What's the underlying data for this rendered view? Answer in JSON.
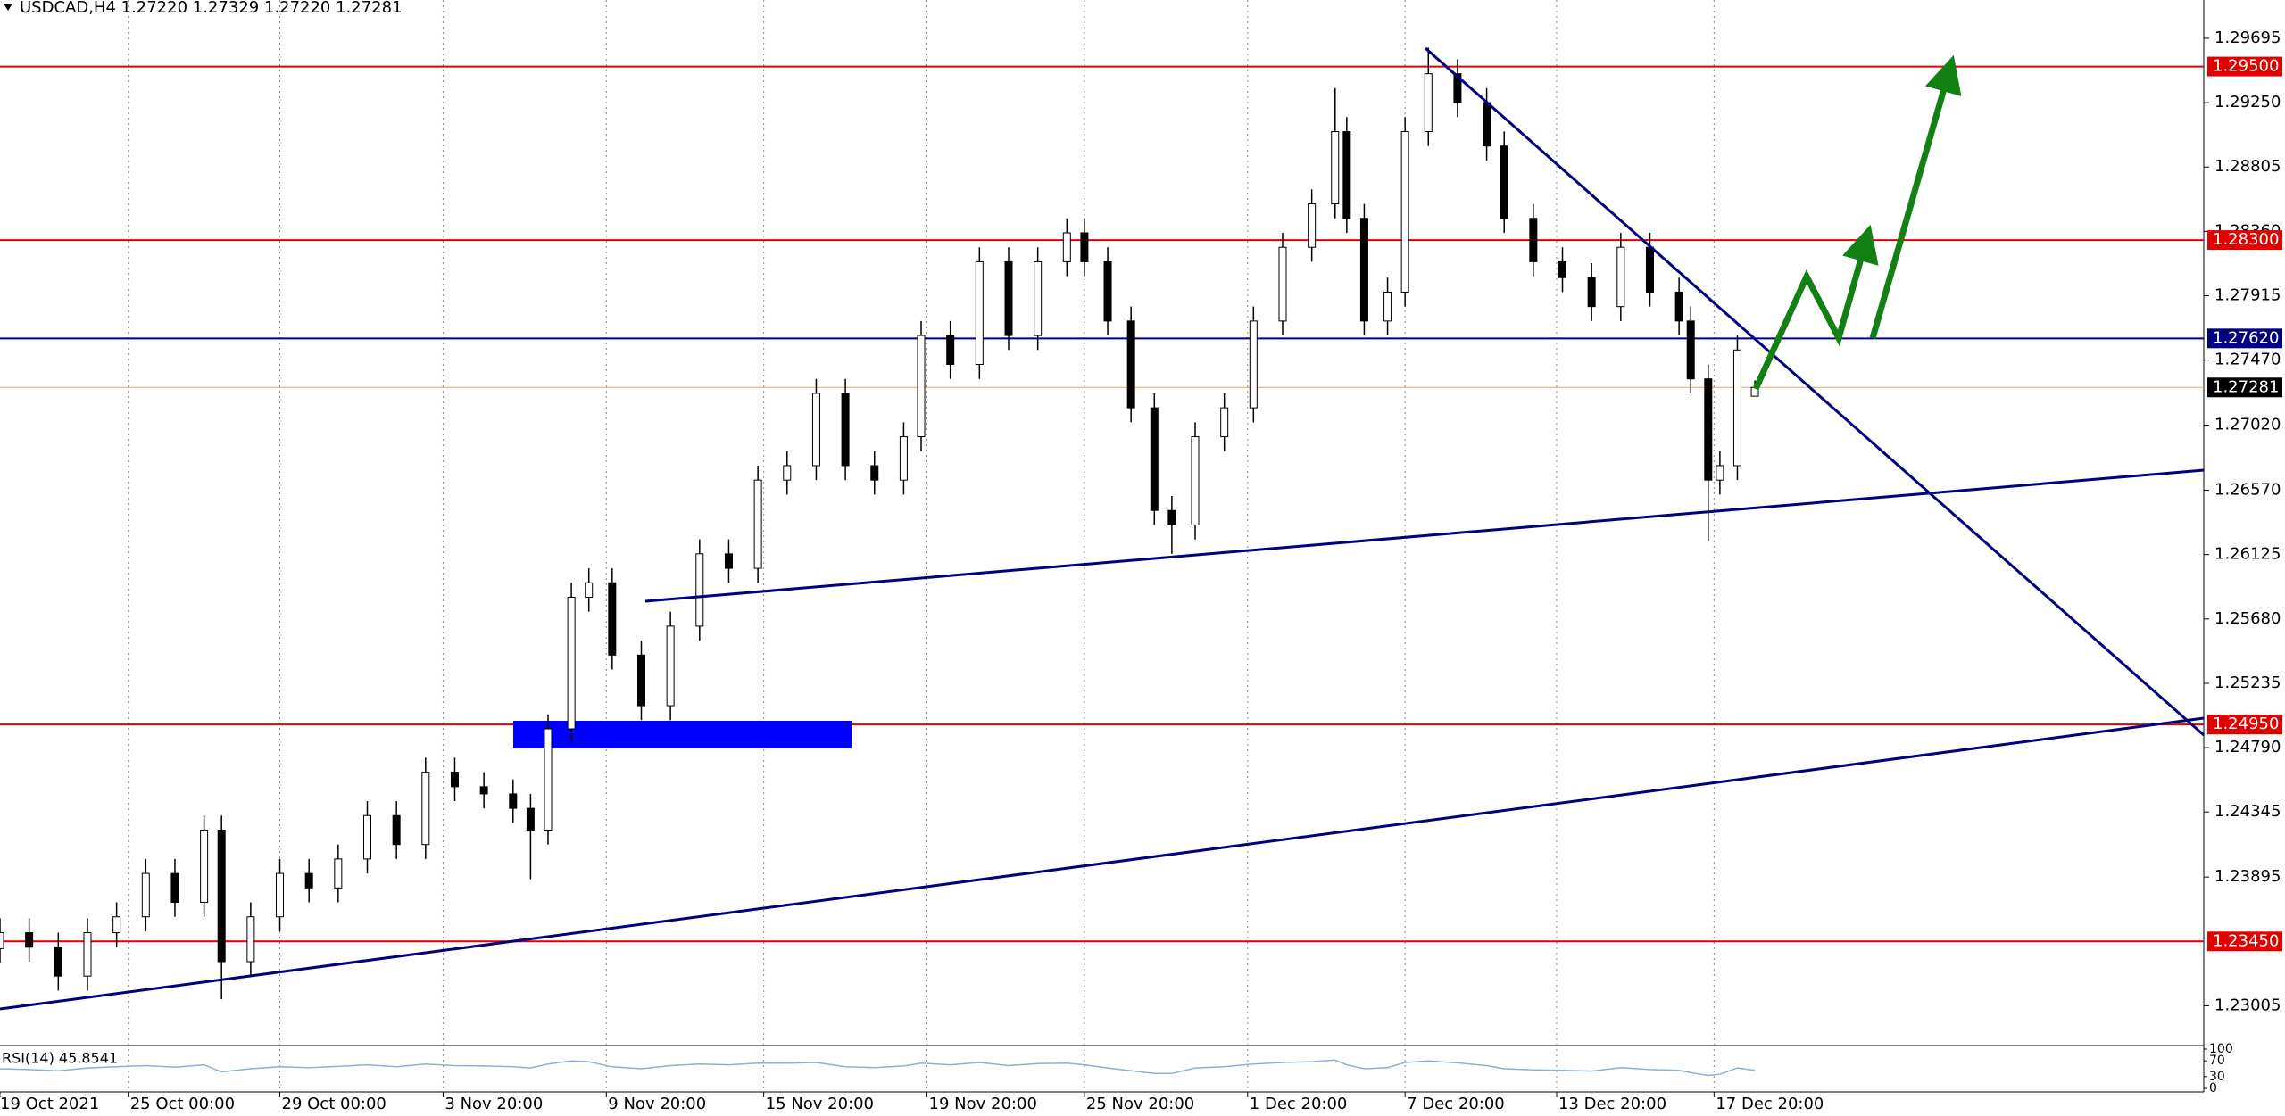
{
  "chart_data": {
    "type": "candlestick",
    "header": "USDCAD,H4  1.27220 1.27329 1.27220 1.27281",
    "x": [
      0,
      5,
      10,
      15,
      20,
      25,
      30,
      35,
      38,
      43,
      48,
      53,
      58,
      63,
      68,
      73,
      78,
      83,
      88,
      91,
      94,
      98,
      101,
      105,
      110,
      115,
      120,
      125,
      130,
      135,
      140,
      145,
      150,
      155,
      158,
      163,
      168,
      173,
      178,
      183,
      186,
      190,
      194,
      198,
      201,
      205,
      210,
      215,
      220,
      225,
      229,
      231,
      234,
      238,
      241,
      245,
      250,
      255,
      258,
      263,
      268,
      273,
      278,
      283,
      288,
      290,
      293,
      295,
      298,
      301
    ],
    "open": [
      1.234,
      1.2351,
      1.2341,
      1.2321,
      1.2351,
      1.2362,
      1.2392,
      1.2372,
      1.2422,
      1.2331,
      1.2362,
      1.2392,
      1.2382,
      1.2402,
      1.2432,
      1.2412,
      1.2462,
      1.2452,
      1.2447,
      1.2437,
      1.2422,
      1.2492,
      1.2583,
      1.2593,
      1.2543,
      1.2508,
      1.2563,
      1.2613,
      1.2603,
      1.2664,
      1.2674,
      1.2724,
      1.2674,
      1.2664,
      1.2694,
      1.2764,
      1.2744,
      1.2815,
      1.2764,
      1.2815,
      1.2835,
      1.2815,
      1.2774,
      1.2714,
      1.2643,
      1.2633,
      1.2694,
      1.2714,
      1.2774,
      1.2825,
      1.2855,
      1.2905,
      1.2845,
      1.2774,
      1.2794,
      1.2905,
      1.2945,
      1.2925,
      1.2895,
      1.2845,
      1.2815,
      1.2804,
      1.2784,
      1.2825,
      1.2794,
      1.2774,
      1.2734,
      1.2664,
      1.2674,
      1.2722
    ],
    "high": [
      1.2361,
      1.2361,
      1.2351,
      1.2361,
      1.2372,
      1.2402,
      1.2402,
      1.2432,
      1.2432,
      1.2372,
      1.2402,
      1.2402,
      1.2412,
      1.2442,
      1.2442,
      1.2472,
      1.2472,
      1.2462,
      1.2457,
      1.2447,
      1.2502,
      1.2593,
      1.2603,
      1.2603,
      1.2553,
      1.2573,
      1.2623,
      1.2623,
      1.2674,
      1.2684,
      1.2734,
      1.2734,
      1.2684,
      1.2704,
      1.2774,
      1.2774,
      1.2825,
      1.2825,
      1.2825,
      1.2845,
      1.2845,
      1.2825,
      1.2784,
      1.2724,
      1.2653,
      1.2704,
      1.2724,
      1.2784,
      1.2835,
      1.2865,
      1.2935,
      1.2915,
      1.2855,
      1.2804,
      1.2915,
      1.2963,
      1.2955,
      1.2935,
      1.2905,
      1.2855,
      1.2825,
      1.2814,
      1.2835,
      1.2835,
      1.2804,
      1.2784,
      1.2744,
      1.2684,
      1.2764,
      1.27329
    ],
    "low": [
      1.233,
      1.2331,
      1.2311,
      1.2311,
      1.2341,
      1.2352,
      1.2362,
      1.2362,
      1.2305,
      1.2321,
      1.2352,
      1.2372,
      1.2372,
      1.2392,
      1.2402,
      1.2402,
      1.2442,
      1.2437,
      1.2427,
      1.2388,
      1.2412,
      1.2482,
      1.2573,
      1.2533,
      1.2498,
      1.2498,
      1.2553,
      1.2593,
      1.2593,
      1.2654,
      1.2664,
      1.2664,
      1.2654,
      1.2654,
      1.2684,
      1.2734,
      1.2734,
      1.2754,
      1.2754,
      1.2805,
      1.2805,
      1.2764,
      1.2704,
      1.2633,
      1.2613,
      1.2623,
      1.2684,
      1.2704,
      1.2764,
      1.2815,
      1.2845,
      1.2835,
      1.2764,
      1.2764,
      1.2784,
      1.2895,
      1.2915,
      1.2885,
      1.2835,
      1.2805,
      1.2794,
      1.2774,
      1.2774,
      1.2784,
      1.2764,
      1.2724,
      1.2622,
      1.2654,
      1.2664,
      1.2722
    ],
    "close": [
      1.2351,
      1.2341,
      1.2321,
      1.2351,
      1.2362,
      1.2392,
      1.2372,
      1.2422,
      1.2331,
      1.2362,
      1.2392,
      1.2382,
      1.2402,
      1.2432,
      1.2412,
      1.2462,
      1.2452,
      1.2447,
      1.2437,
      1.2422,
      1.2492,
      1.2583,
      1.2593,
      1.2543,
      1.2508,
      1.2563,
      1.2613,
      1.2603,
      1.2664,
      1.2674,
      1.2724,
      1.2674,
      1.2664,
      1.2694,
      1.2764,
      1.2744,
      1.2815,
      1.2764,
      1.2815,
      1.2835,
      1.2815,
      1.2774,
      1.2714,
      1.2643,
      1.2633,
      1.2694,
      1.2714,
      1.2774,
      1.2825,
      1.2855,
      1.2905,
      1.2845,
      1.2774,
      1.2794,
      1.2905,
      1.2945,
      1.2925,
      1.2895,
      1.2845,
      1.2815,
      1.2804,
      1.2784,
      1.2825,
      1.2794,
      1.2774,
      1.2734,
      1.2664,
      1.2674,
      1.2754,
      1.27281
    ],
    "xlim": [
      0,
      378
    ],
    "xticks": [
      {
        "value": 0,
        "label": "19 Oct 2021"
      },
      {
        "value": 22,
        "label": "25 Oct 00:00"
      },
      {
        "value": 48,
        "label": "29 Oct 00:00"
      },
      {
        "value": 76,
        "label": "3 Nov 20:00"
      },
      {
        "value": 104,
        "label": "9 Nov 20:00"
      },
      {
        "value": 131,
        "label": "15 Nov 20:00"
      },
      {
        "value": 159,
        "label": "19 Nov 20:00"
      },
      {
        "value": 186,
        "label": "25 Nov 20:00"
      },
      {
        "value": 214,
        "label": "1 Dec 20:00"
      },
      {
        "value": 241,
        "label": "7 Dec 20:00"
      },
      {
        "value": 267,
        "label": "13 Dec 20:00"
      },
      {
        "value": 294,
        "label": "17 Dec 20:00"
      }
    ],
    "ylim": [
      1.2273,
      1.2996
    ],
    "yticks": [
      1.29695,
      {
        "value": 1.2925,
        "label": "1.29250"
      },
      1.28805,
      {
        "value": 1.2836,
        "label": "1.28360"
      },
      1.27915,
      {
        "value": 1.2747,
        "label": "1.27470"
      },
      {
        "value": 1.2702,
        "label": "1.27020"
      },
      {
        "value": 1.2657,
        "label": "1.26570"
      },
      1.26125,
      {
        "value": 1.2568,
        "label": "1.25680"
      },
      1.25235,
      {
        "value": 1.2479,
        "label": "1.24790"
      },
      1.24345,
      1.23895,
      1.23005
    ],
    "levels": [
      {
        "value": 1.295,
        "label": "1.29500",
        "color": "#e00000"
      },
      {
        "value": 1.283,
        "label": "1.28300",
        "color": "#e00000"
      },
      {
        "value": 1.2762,
        "label": "1.27620",
        "color": "#000080"
      },
      {
        "value": 1.27281,
        "label": "1.27281",
        "color": "#000000"
      },
      {
        "value": 1.2495,
        "label": "1.24950",
        "color": "#e00000"
      },
      {
        "value": 1.2345,
        "label": "1.23450",
        "color": "#e00000"
      }
    ],
    "up_color": "#ffffff",
    "down_color": "#000000",
    "rsi": {
      "label": "RSI(14) 45.8541",
      "color": "#8fb0d0",
      "ylim": [
        0,
        100
      ],
      "yticks": [
        100,
        70,
        30,
        0
      ],
      "values": [
        50,
        48,
        45,
        52,
        55,
        58,
        54,
        60,
        42,
        50,
        55,
        53,
        56,
        60,
        55,
        62,
        58,
        57,
        55,
        52,
        62,
        70,
        68,
        55,
        50,
        58,
        62,
        60,
        64,
        64,
        66,
        55,
        53,
        57,
        64,
        60,
        66,
        58,
        63,
        64,
        60,
        52,
        45,
        38,
        38,
        52,
        55,
        62,
        66,
        68,
        72,
        60,
        50,
        53,
        66,
        70,
        65,
        58,
        50,
        47,
        46,
        44,
        53,
        48,
        46,
        40,
        33,
        36,
        52,
        46
      ]
    }
  }
}
